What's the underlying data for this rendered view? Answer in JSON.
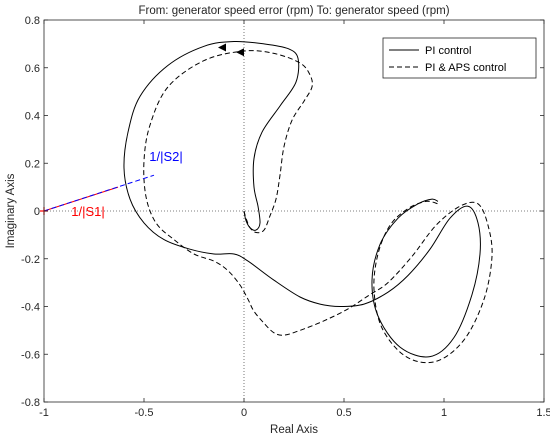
{
  "chart_data": {
    "type": "line",
    "title": "From: generator speed error (rpm)  To: generator speed (rpm)",
    "xlabel": "Real Axis",
    "ylabel": "Imaginary Axis",
    "xlim": [
      -1,
      1.5
    ],
    "ylim": [
      -0.8,
      0.8
    ],
    "xticks": [
      "-1",
      "-0.5",
      "0",
      "0.5",
      "1",
      "1.5"
    ],
    "yticks": [
      "-0.8",
      "-0.6",
      "-0.4",
      "-0.2",
      "0",
      "0.2",
      "0.4",
      "0.6",
      "0.8"
    ],
    "grid": false,
    "legend_position": "top-right",
    "series": [
      {
        "name": "PI control",
        "style": "solid",
        "color": "#000000",
        "x": [
          0.0,
          0.01,
          0.03,
          0.06,
          0.08,
          0.07,
          0.05,
          0.05,
          0.09,
          0.18,
          0.26,
          0.27,
          0.22,
          0.1,
          -0.05,
          -0.2,
          -0.38,
          -0.52,
          -0.58,
          -0.6,
          -0.57,
          -0.5,
          -0.4,
          -0.27,
          -0.15,
          -0.05,
          0.02,
          0.15,
          0.28,
          0.38,
          0.48,
          0.6,
          0.72,
          0.82,
          0.93,
          1.03,
          1.12,
          1.17,
          1.18,
          1.14,
          1.05,
          0.93,
          0.78,
          0.67,
          0.64,
          0.68,
          0.77,
          0.87,
          0.94,
          0.97
        ],
        "y": [
          0.0,
          -0.04,
          -0.07,
          -0.08,
          -0.05,
          0.02,
          0.1,
          0.22,
          0.33,
          0.44,
          0.54,
          0.64,
          0.68,
          0.7,
          0.71,
          0.69,
          0.61,
          0.48,
          0.33,
          0.18,
          0.05,
          -0.05,
          -0.12,
          -0.16,
          -0.18,
          -0.18,
          -0.21,
          -0.29,
          -0.36,
          -0.39,
          -0.4,
          -0.39,
          -0.34,
          -0.27,
          -0.16,
          -0.03,
          0.02,
          -0.05,
          -0.18,
          -0.35,
          -0.53,
          -0.61,
          -0.57,
          -0.44,
          -0.29,
          -0.14,
          -0.03,
          0.03,
          0.05,
          0.04
        ]
      },
      {
        "name": "PI & APS control",
        "style": "dashed",
        "color": "#000000",
        "x": [
          0.0,
          0.01,
          0.03,
          0.06,
          0.1,
          0.13,
          0.16,
          0.18,
          0.2,
          0.24,
          0.3,
          0.34,
          0.33,
          0.28,
          0.15,
          0.0,
          -0.2,
          -0.38,
          -0.47,
          -0.5,
          -0.49,
          -0.44,
          -0.35,
          -0.25,
          -0.15,
          -0.08,
          -0.02,
          0.02,
          0.05,
          0.1,
          0.15,
          0.2,
          0.28,
          0.4,
          0.52,
          0.63,
          0.72,
          0.84,
          0.96,
          1.08,
          1.17,
          1.22,
          1.24,
          1.2,
          1.1,
          0.96,
          0.81,
          0.69,
          0.65,
          0.67,
          0.73,
          0.82,
          0.91,
          0.97
        ],
        "y": [
          0.0,
          -0.03,
          -0.07,
          -0.09,
          -0.08,
          -0.02,
          0.05,
          0.15,
          0.27,
          0.38,
          0.46,
          0.52,
          0.57,
          0.62,
          0.66,
          0.67,
          0.63,
          0.52,
          0.36,
          0.21,
          0.06,
          -0.05,
          -0.12,
          -0.18,
          -0.21,
          -0.25,
          -0.31,
          -0.37,
          -0.42,
          -0.47,
          -0.51,
          -0.52,
          -0.5,
          -0.46,
          -0.41,
          -0.35,
          -0.3,
          -0.19,
          -0.06,
          0.02,
          0.03,
          -0.06,
          -0.19,
          -0.37,
          -0.54,
          -0.63,
          -0.61,
          -0.49,
          -0.33,
          -0.18,
          -0.06,
          0.01,
          0.04,
          0.03
        ]
      },
      {
        "name": "",
        "style": "solid",
        "color": "#ff0000",
        "x": [
          -1,
          -0.63
        ],
        "y": [
          0,
          0.1
        ]
      },
      {
        "name": "",
        "style": "dashed",
        "color": "#0000ff",
        "x": [
          -1,
          -0.45
        ],
        "y": [
          0,
          0.15
        ]
      }
    ],
    "arrows": [
      {
        "x": -0.13,
        "y": 0.685,
        "direction": "left"
      },
      {
        "x": -0.04,
        "y": 0.665,
        "direction": "left"
      }
    ],
    "reference_lines": [
      {
        "orientation": "vertical",
        "value": 0,
        "style": "dotted"
      },
      {
        "orientation": "horizontal",
        "value": 0,
        "style": "dotted"
      }
    ],
    "critical_point": {
      "x": -1,
      "y": 0,
      "marker": "+",
      "color": "#ff0000"
    },
    "annotations": [
      {
        "text": "1/|S2|",
        "x": -0.39,
        "y": 0.21,
        "color": "#0000ff"
      },
      {
        "text": "1/|S1|",
        "x": -0.78,
        "y": -0.02,
        "color": "#ff0000"
      }
    ]
  }
}
